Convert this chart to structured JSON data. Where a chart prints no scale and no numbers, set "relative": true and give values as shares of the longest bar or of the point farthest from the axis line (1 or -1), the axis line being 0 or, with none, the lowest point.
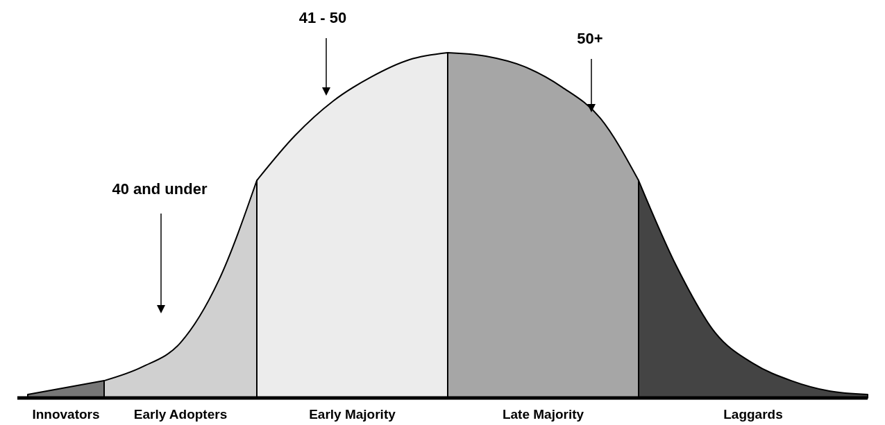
{
  "chart_data": {
    "type": "area",
    "relative": true,
    "categories": [
      null,
      null,
      null,
      null,
      null,
      null,
      null,
      null,
      null,
      null,
      null,
      null,
      null,
      null,
      null,
      null,
      null,
      null,
      null,
      null,
      null,
      null,
      null
    ],
    "series": [
      {
        "name": "Innovators",
        "color": "#777777",
        "values": [
          0.01,
          0.03,
          0.05,
          null,
          null,
          null,
          null,
          null,
          null,
          null,
          null,
          null,
          null,
          null,
          null,
          null,
          null,
          null,
          null,
          null,
          null,
          null,
          null
        ]
      },
      {
        "name": "Early Adopters",
        "color": "#d0d0d0",
        "values": [
          null,
          null,
          0.05,
          0.09,
          0.16,
          0.34,
          0.63,
          null,
          null,
          null,
          null,
          null,
          null,
          null,
          null,
          null,
          null,
          null,
          null,
          null,
          null,
          null,
          null
        ]
      },
      {
        "name": "Early Majority",
        "color": "#ececec",
        "values": [
          null,
          null,
          null,
          null,
          null,
          null,
          0.63,
          0.76,
          0.86,
          0.93,
          0.98,
          1.0,
          null,
          null,
          null,
          null,
          null,
          null,
          null,
          null,
          null,
          null,
          null
        ]
      },
      {
        "name": "Late Majority",
        "color": "#a6a6a6",
        "values": [
          null,
          null,
          null,
          null,
          null,
          null,
          null,
          null,
          null,
          null,
          null,
          1.0,
          0.99,
          0.96,
          0.9,
          0.81,
          0.63,
          null,
          null,
          null,
          null,
          null,
          null
        ]
      },
      {
        "name": "Laggards",
        "color": "#444444",
        "values": [
          null,
          null,
          null,
          null,
          null,
          null,
          null,
          null,
          null,
          null,
          null,
          null,
          null,
          null,
          null,
          null,
          0.63,
          0.38,
          0.19,
          0.1,
          0.05,
          0.02,
          0.01
        ]
      }
    ],
    "annotations": [
      "40 and under",
      "41 - 50",
      "50+"
    ]
  }
}
